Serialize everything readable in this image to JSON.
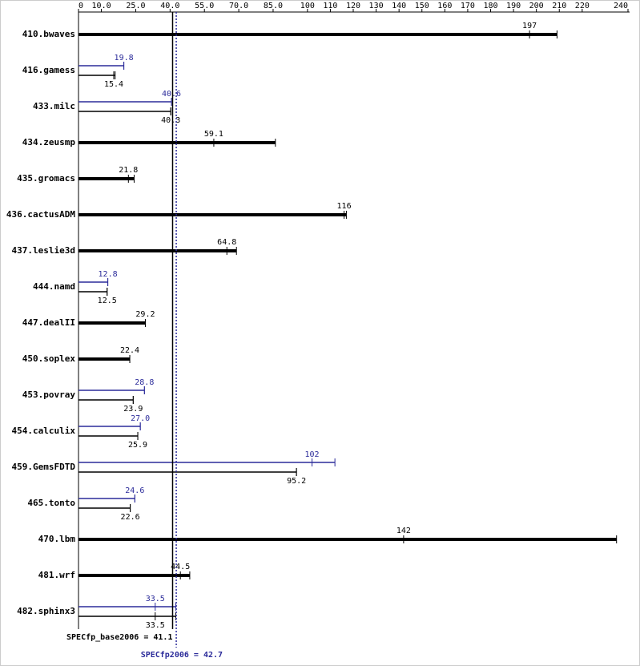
{
  "chart_data": {
    "type": "bar",
    "orientation": "horizontal",
    "categories": [
      "410.bwaves",
      "416.gamess",
      "433.milc",
      "434.zeusmp",
      "435.gromacs",
      "436.cactusADM",
      "437.leslie3d",
      "444.namd",
      "447.dealII",
      "450.soplex",
      "453.povray",
      "454.calculix",
      "459.GemsFDTD",
      "465.tonto",
      "470.lbm",
      "481.wrf",
      "482.sphinx3"
    ],
    "series": [
      {
        "color": "#000000",
        "values": [
          197,
          15.4,
          40.3,
          59.1,
          21.8,
          116,
          64.8,
          12.5,
          29.2,
          22.4,
          23.9,
          25.9,
          95.2,
          22.6,
          142,
          44.5,
          33.5
        ],
        "max": [
          209,
          16,
          40.3,
          86,
          24.3,
          117,
          69,
          12.5,
          29.2,
          22.4,
          23.9,
          25.9,
          95.2,
          22.6,
          235,
          48.6,
          42.5
        ]
      },
      {
        "color": "#2b2b9a",
        "values": [
          null,
          19.8,
          40.6,
          null,
          null,
          null,
          null,
          12.8,
          null,
          null,
          28.8,
          27.0,
          102,
          24.6,
          null,
          null,
          33.5
        ],
        "value_labels": [
          null,
          "19.8",
          "40.6",
          null,
          null,
          null,
          null,
          "12.8",
          null,
          null,
          "28.8",
          "27.0",
          "102",
          "24.6",
          null,
          null,
          "33.5"
        ],
        "max": [
          null,
          19.8,
          40.6,
          null,
          null,
          null,
          null,
          12.8,
          null,
          null,
          28.8,
          27.0,
          112,
          24.6,
          null,
          null,
          42.5
        ]
      }
    ],
    "xlim": [
      0,
      240
    ],
    "xticks": [
      0,
      {
        "value": 10,
        "label": "10.0"
      },
      {
        "value": 25,
        "label": "25.0"
      },
      {
        "value": 40,
        "label": "40.0"
      },
      {
        "value": 55,
        "label": "55.0"
      },
      {
        "value": 70,
        "label": "70.0"
      },
      {
        "value": 85,
        "label": "85.0"
      },
      100,
      110,
      120,
      130,
      140,
      150,
      160,
      170,
      180,
      190,
      200,
      210,
      220,
      240
    ],
    "reference_lines": [
      {
        "label": "SPECfp_base2006 = 41.1",
        "value": 41.1,
        "color": "#000000"
      },
      {
        "label": "SPECfp2006 = 42.7",
        "value": 42.7,
        "color": "#2b2b9a"
      }
    ]
  }
}
